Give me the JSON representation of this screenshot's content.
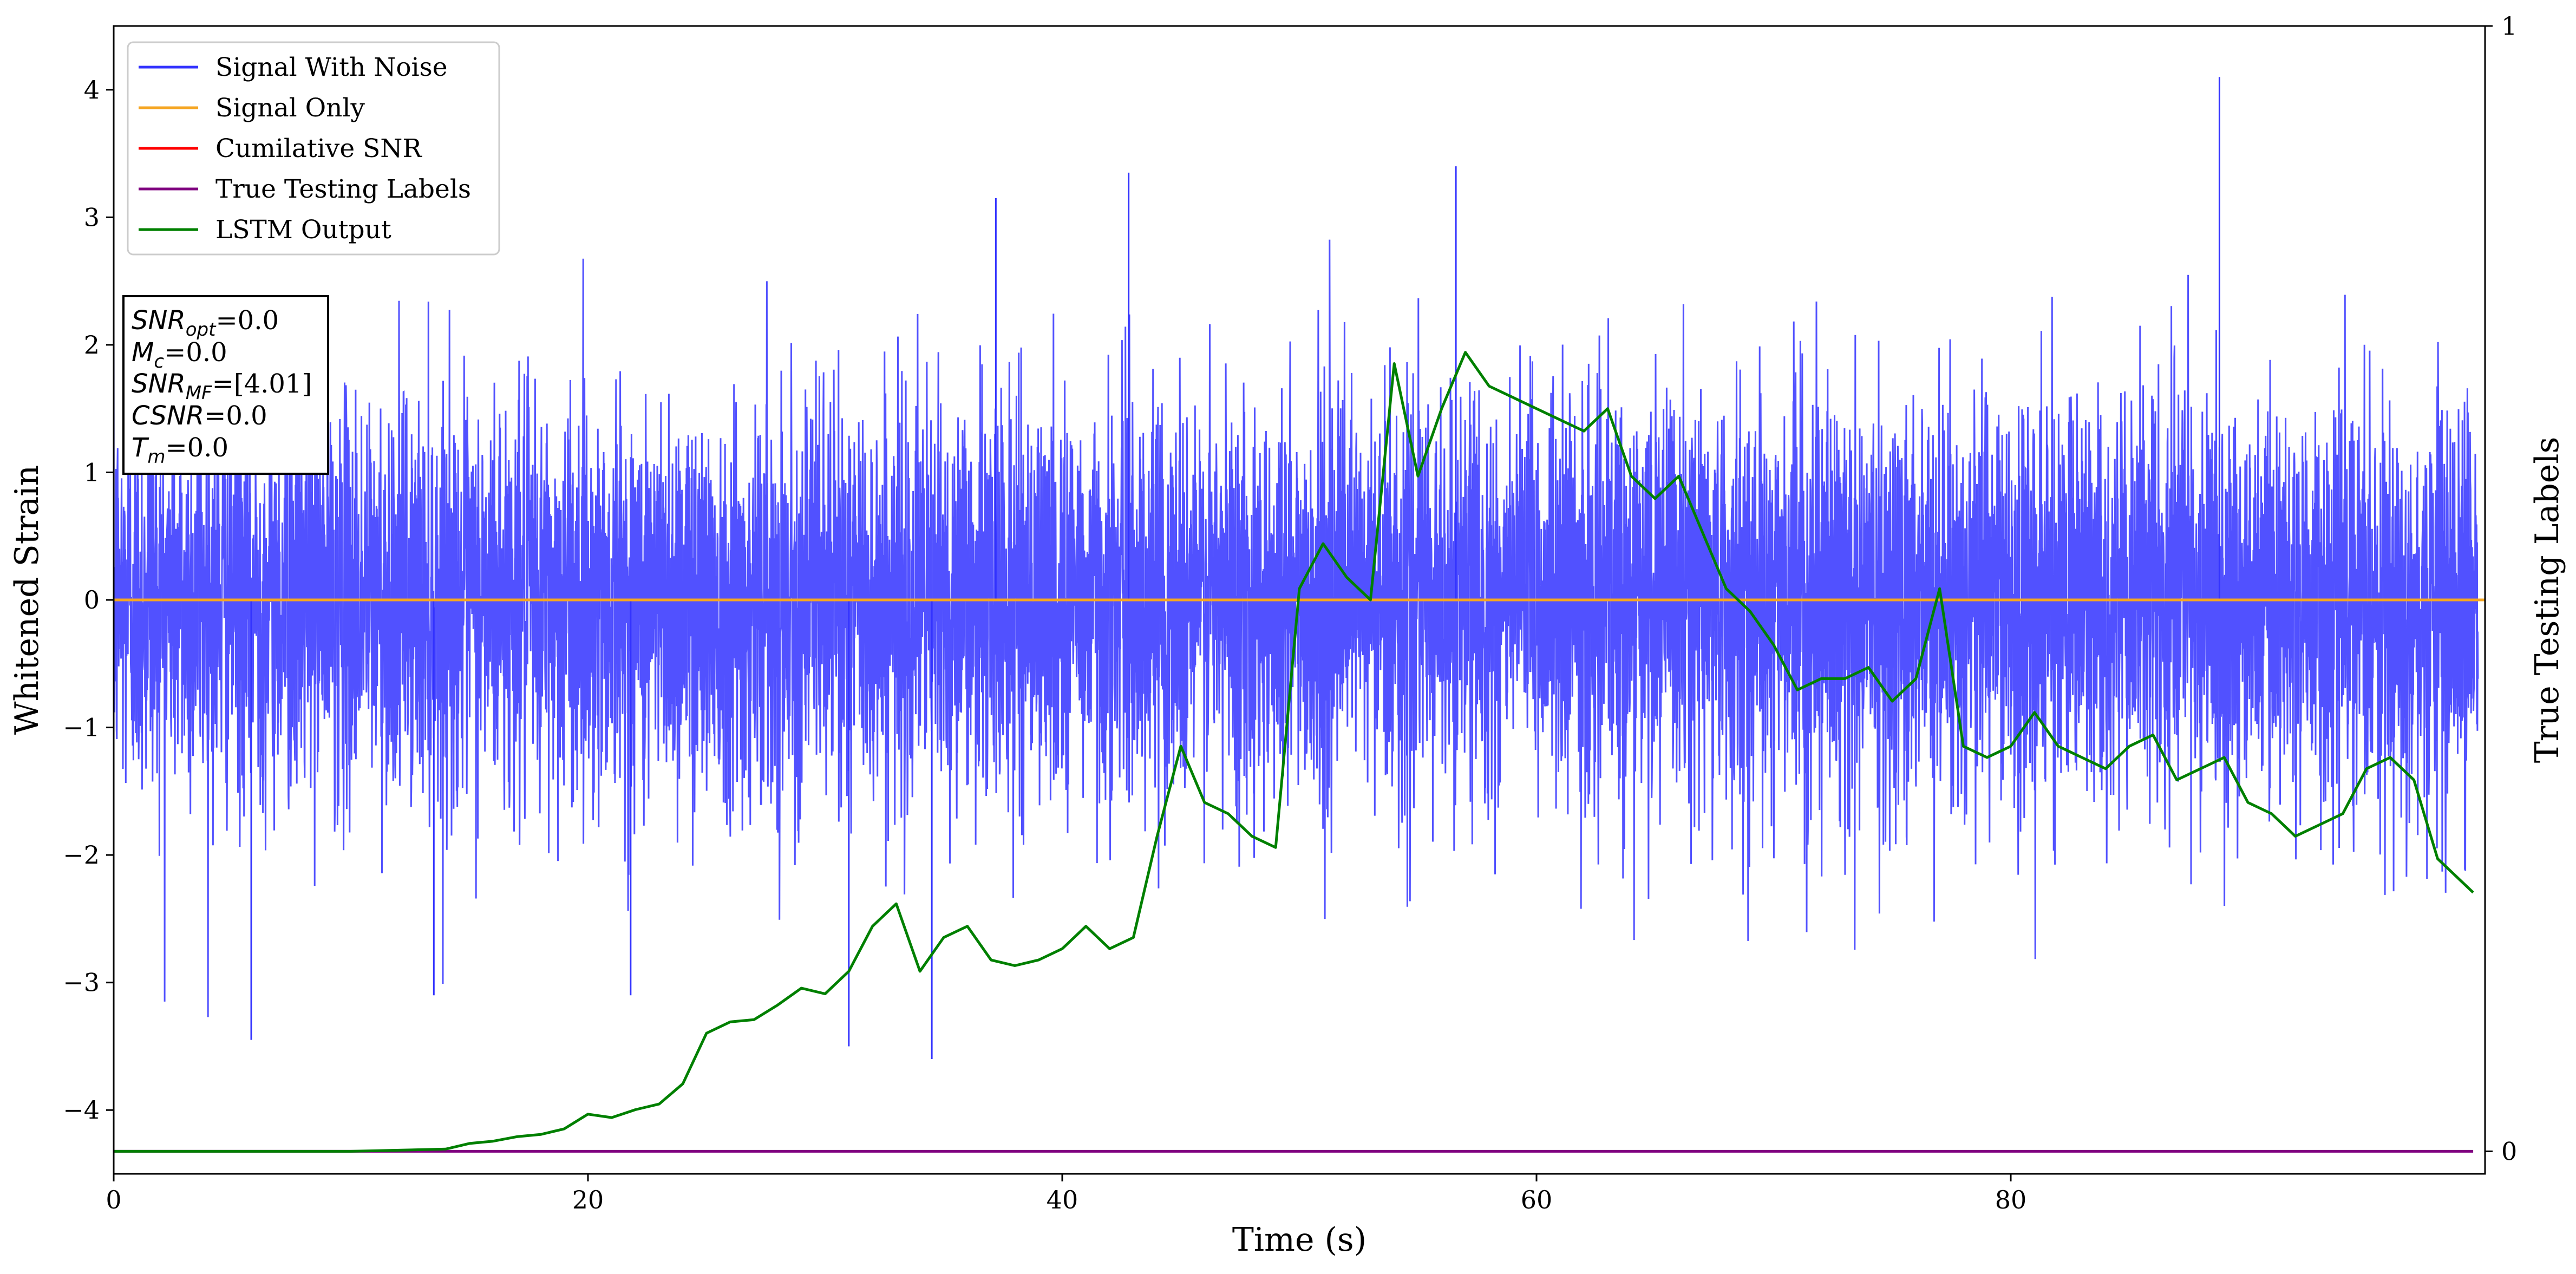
{
  "chart_data": {
    "type": "line",
    "xlabel": "Time (s)",
    "ylabel": "Whitened Strain",
    "ylabel_right": "True Testing Labels",
    "xlim": [
      0,
      100
    ],
    "ylim": [
      -4.5,
      4.5
    ],
    "ylim_right": [
      -0.02,
      1.0
    ],
    "x_ticks": [
      "0",
      "20",
      "40",
      "60",
      "80"
    ],
    "y_ticks": [
      "−4",
      "−3",
      "−2",
      "−1",
      "0",
      "1",
      "2",
      "3",
      "4"
    ],
    "y_right_ticks": [
      "0",
      "1"
    ],
    "grid": false,
    "legend_position": "upper left",
    "series": [
      {
        "name": "Signal With Noise",
        "color": "#3333ff",
        "axis": "left",
        "note_kind": "white noise, approx. gaussian, sd ~0.75, spikes up to 4.1"
      },
      {
        "name": "Signal Only",
        "color": "#f5a623",
        "axis": "left",
        "x": [
          0,
          100
        ],
        "y": [
          0,
          0
        ]
      },
      {
        "name": "Cumilative SNR",
        "color": "#ff0000",
        "axis": "left",
        "x": [],
        "y": []
      },
      {
        "name": "True Testing Labels",
        "color": "#800080",
        "axis": "right",
        "x": [
          0,
          99.5
        ],
        "y": [
          0,
          0
        ]
      },
      {
        "name": "LSTM Output",
        "color": "#008000",
        "axis": "right",
        "x": [
          0,
          5,
          10,
          12,
          14,
          15,
          16,
          17,
          18,
          19,
          20,
          21,
          22,
          23,
          24,
          25,
          26,
          27,
          28,
          29,
          30,
          31,
          32,
          33,
          34,
          35,
          36,
          37,
          38,
          39,
          40,
          41,
          42,
          43,
          44,
          45,
          46,
          47,
          48,
          49,
          50,
          51,
          52,
          53,
          54,
          55,
          56,
          57,
          58,
          59,
          60,
          61,
          62,
          63,
          64,
          65,
          66,
          67,
          68,
          69,
          70,
          71,
          72,
          73,
          74,
          75,
          76,
          77,
          78,
          79,
          80,
          81,
          82,
          83,
          84,
          85,
          86,
          87,
          88,
          89,
          90,
          91,
          92,
          93,
          94,
          95,
          96,
          97,
          98,
          99.5
        ],
        "y": [
          0,
          0,
          0,
          0.001,
          0.002,
          0.007,
          0.009,
          0.013,
          0.015,
          0.02,
          0.033,
          0.03,
          0.037,
          0.042,
          0.06,
          0.105,
          0.115,
          0.117,
          0.13,
          0.145,
          0.14,
          0.16,
          0.2,
          0.22,
          0.16,
          0.19,
          0.2,
          0.17,
          0.165,
          0.17,
          0.18,
          0.2,
          0.18,
          0.19,
          0.28,
          0.36,
          0.31,
          0.3,
          0.28,
          0.27,
          0.5,
          0.54,
          0.51,
          0.49,
          0.7,
          0.6,
          0.66,
          0.71,
          0.68,
          0.67,
          0.66,
          0.65,
          0.64,
          0.66,
          0.6,
          0.58,
          0.6,
          0.55,
          0.5,
          0.48,
          0.45,
          0.41,
          0.42,
          0.42,
          0.43,
          0.4,
          0.42,
          0.5,
          0.36,
          0.35,
          0.36,
          0.39,
          0.36,
          0.35,
          0.34,
          0.36,
          0.37,
          0.33,
          0.34,
          0.35,
          0.31,
          0.3,
          0.28,
          0.29,
          0.3,
          0.34,
          0.35,
          0.33,
          0.26,
          0.23
        ]
      }
    ],
    "annotation": {
      "line1_sym": "SNR",
      "line1_sub": "opt",
      "line1_val": "=0.0",
      "line2_sym": "M",
      "line2_sub": "c",
      "line2_val": "=0.0",
      "line3_sym": "SNR",
      "line3_sub": "MF",
      "line3_val": "=[4.01]",
      "line4_sym": "CSNR",
      "line4_val": "=0.0",
      "line5_sym": "T",
      "line5_sub": "m",
      "line5_val": "=0.0"
    }
  }
}
